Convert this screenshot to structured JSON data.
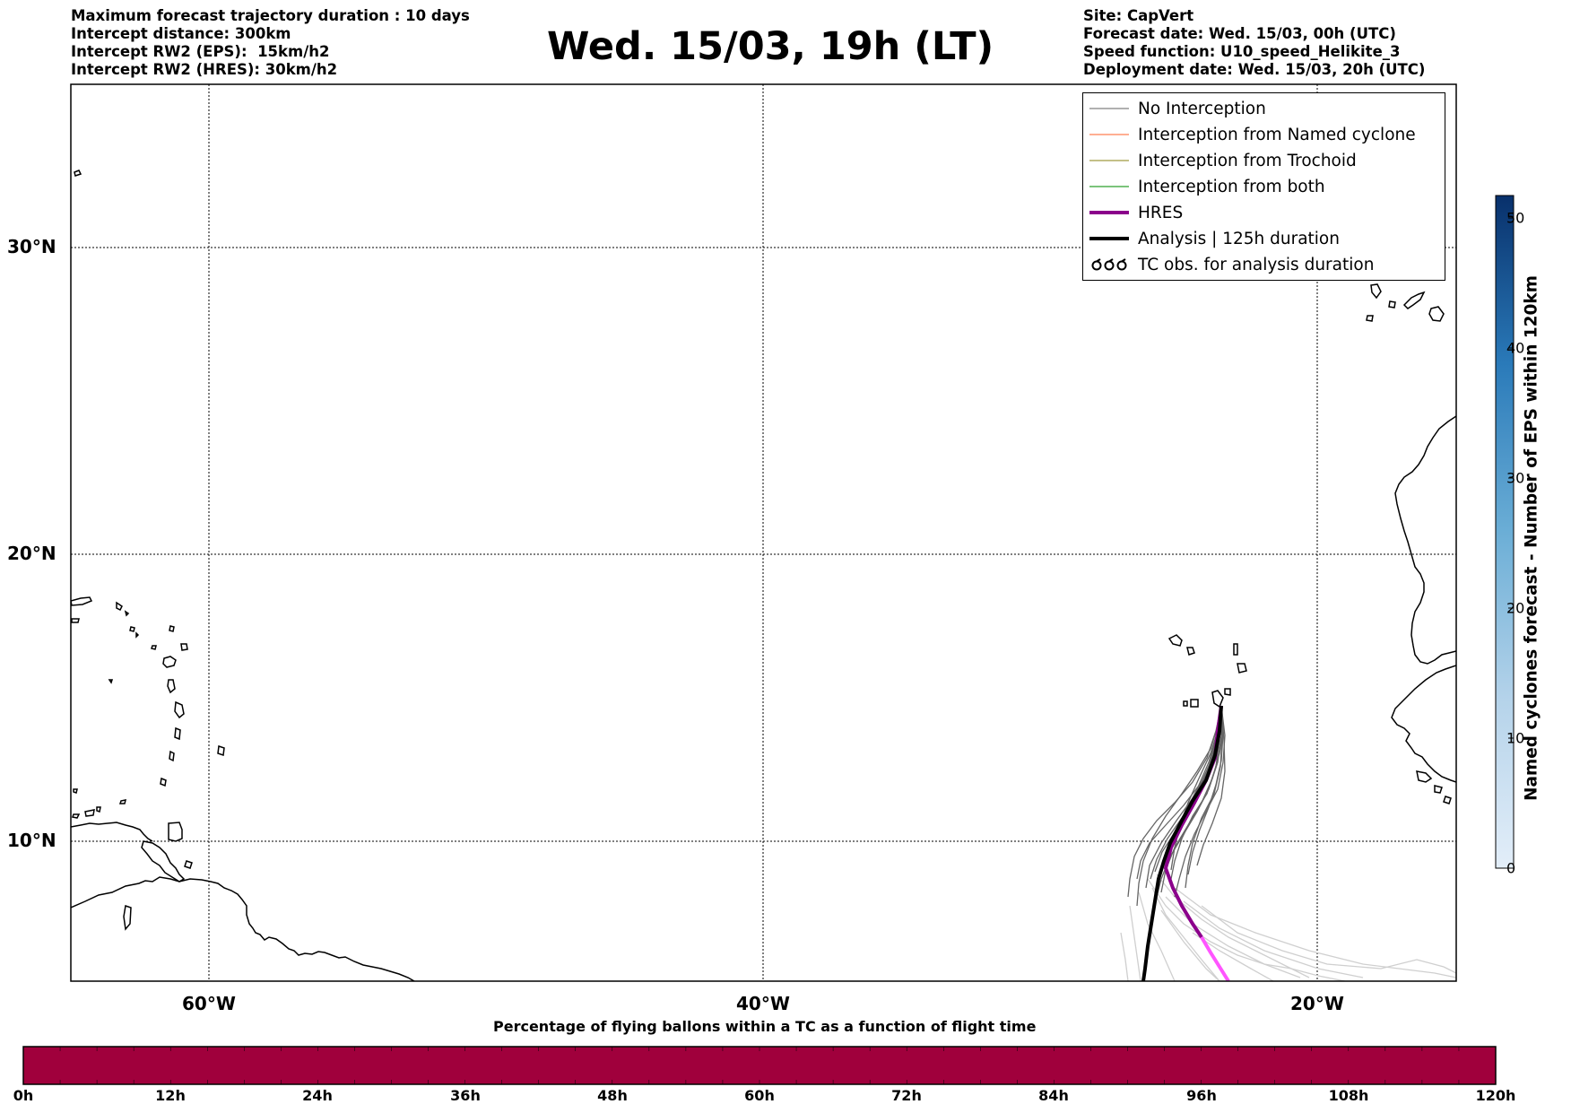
{
  "info_left": [
    "Maximum forecast trajectory duration : 10 days",
    "Intercept distance: 300km",
    "Intercept RW2 (EPS):  15km/h2",
    "Intercept RW2 (HRES): 30km/h2"
  ],
  "info_right": [
    "Site: CapVert",
    "Forecast date: Wed. 15/03, 00h (UTC)",
    "Speed function: U10_speed_Helikite_3",
    "Deployment date: Wed. 15/03, 20h (UTC)"
  ],
  "title": "Wed. 15/03, 19h (LT)",
  "legend": {
    "items": [
      {
        "label": "No Interception",
        "color": "#808080",
        "style": "thin"
      },
      {
        "label": "Interception from Named cyclone",
        "color": "#ff7f50",
        "style": "thin"
      },
      {
        "label": "Interception from Trochoid",
        "color": "#a09a40",
        "style": "thin"
      },
      {
        "label": "Interception from both",
        "color": "#2ca02c",
        "style": "thin"
      },
      {
        "label": "HRES",
        "color": "#8b008b",
        "style": "thick"
      },
      {
        "label": "Analysis | 125h duration",
        "color": "#000000",
        "style": "thick"
      },
      {
        "label": "TC obs. for analysis duration",
        "color": "#000000",
        "style": "symbol",
        "icon": "tc-symbol-icon"
      }
    ]
  },
  "map": {
    "lat_labels": [
      "30°N",
      "20°N",
      "10°N"
    ],
    "lon_labels": [
      "60°W",
      "40°W",
      "20°W"
    ],
    "grid": "dotted",
    "colors": {
      "trajectory": "#666666",
      "trajectory_late": "#cfcfcf",
      "hres": "#8b008b",
      "hres_late": "#ff55ff",
      "analysis": "#000000"
    }
  },
  "bottom_bar": {
    "title": "Percentage of flying ballons within a TC as a function of flight time",
    "tick_labels": [
      "0h",
      "12h",
      "24h",
      "36h",
      "48h",
      "60h",
      "72h",
      "84h",
      "96h",
      "108h",
      "120h"
    ],
    "fill_color": "#a0003c",
    "value_percent": 0
  },
  "colorbar": {
    "title": "Named cyclones forecast - Number of EPS within 120km",
    "tick_labels": [
      "0",
      "10",
      "20",
      "30",
      "40",
      "50"
    ],
    "color_low": "#e3eef9",
    "color_high": "#08306b"
  }
}
